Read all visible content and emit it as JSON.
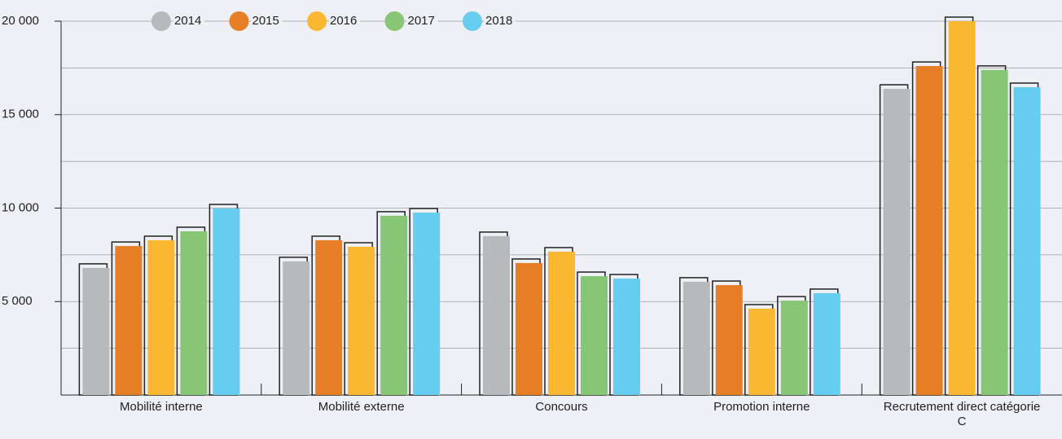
{
  "chart_data": {
    "type": "bar",
    "categories": [
      "Mobilité interne",
      "Mobilité externe",
      "Concours",
      "Promotion interne",
      "Recrutement direct catégorie C"
    ],
    "series": [
      {
        "name": "2014",
        "color": "#b7b9bb",
        "values": [
          6800,
          7150,
          8500,
          6060,
          16380
        ]
      },
      {
        "name": "2015",
        "color": "#e57e25",
        "values": [
          7970,
          8280,
          7060,
          5880,
          17600
        ]
      },
      {
        "name": "2016",
        "color": "#f9b732",
        "values": [
          8280,
          7930,
          7670,
          4620,
          20000
        ]
      },
      {
        "name": "2017",
        "color": "#86c675",
        "values": [
          8760,
          9590,
          6360,
          5050,
          17390
        ]
      },
      {
        "name": "2018",
        "color": "#66cdf0",
        "values": [
          9980,
          9760,
          6230,
          5450,
          16470
        ]
      }
    ],
    "ylim": [
      0,
      20000
    ],
    "yticks": [
      {
        "value": 5000,
        "label": "5 000"
      },
      {
        "value": 10000,
        "label": "10 000"
      },
      {
        "value": 15000,
        "label": "15 000"
      },
      {
        "value": 20000,
        "label": "20 000"
      }
    ],
    "minor_yticks": [
      2500,
      7500,
      12500,
      17500
    ],
    "grid": true,
    "legend": "top"
  }
}
